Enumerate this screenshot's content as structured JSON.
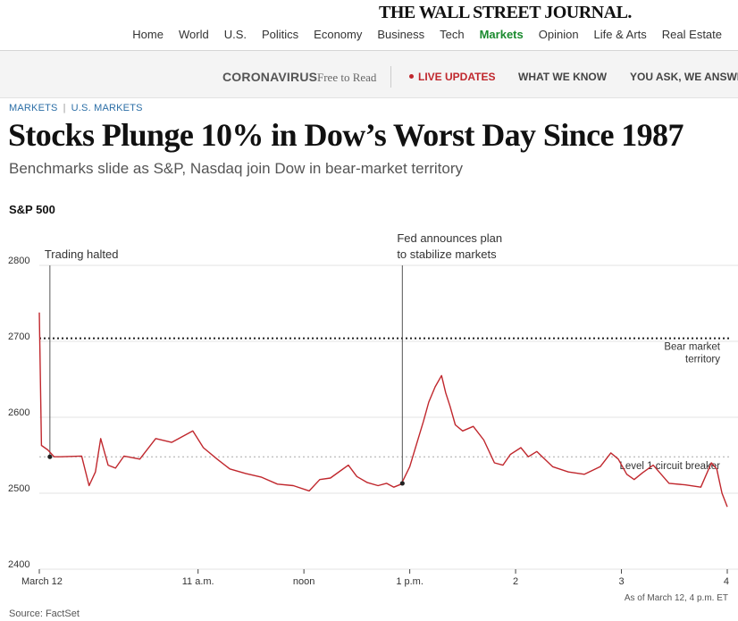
{
  "masthead": {
    "logo": "THE WALL STREET JOURNAL."
  },
  "nav": [
    "Home",
    "World",
    "U.S.",
    "Politics",
    "Economy",
    "Business",
    "Tech",
    "Markets",
    "Opinion",
    "Life & Arts",
    "Real Estate"
  ],
  "nav_active": "Markets",
  "subbar": {
    "title": "CORONAVIRUS",
    "free": "Free to Read",
    "live": "LIVE UPDATES",
    "know": "WHAT WE KNOW",
    "ask": "YOU ASK, WE ANSWER"
  },
  "breadcrumb": {
    "section": "MARKETS",
    "subsection": "U.S. MARKETS"
  },
  "article": {
    "headline": "Stocks Plunge 10% in Dow’s Worst Day Since 1987",
    "dek": "Benchmarks slide as S&P, Nasdaq join Dow in bear-market territory"
  },
  "chart_data": {
    "type": "line",
    "title": "S&P 500",
    "xlabel": "",
    "ylabel": "",
    "ylim": [
      2400,
      2800
    ],
    "yticks": [
      2400,
      2500,
      2600,
      2700,
      2800
    ],
    "xlim": [
      9.5,
      16.0
    ],
    "xticks": [
      {
        "x": 9.5,
        "label": "March 12"
      },
      {
        "x": 11.0,
        "label": "11 a.m."
      },
      {
        "x": 12.0,
        "label": "noon"
      },
      {
        "x": 13.0,
        "label": "1 p.m."
      },
      {
        "x": 14.0,
        "label": "2"
      },
      {
        "x": 15.0,
        "label": "3"
      },
      {
        "x": 16.0,
        "label": "4"
      }
    ],
    "series": [
      {
        "color": "#c0272d",
        "x": [
          9.5,
          9.52,
          9.58,
          9.64,
          9.7,
          9.9,
          9.97,
          10.03,
          10.08,
          10.15,
          10.22,
          10.3,
          10.45,
          10.6,
          10.75,
          10.95,
          11.05,
          11.18,
          11.3,
          11.45,
          11.6,
          11.75,
          11.9,
          12.05,
          12.15,
          12.25,
          12.35,
          12.42,
          12.5,
          12.6,
          12.7,
          12.78,
          12.85,
          12.92,
          13.0,
          13.08,
          13.13,
          13.18,
          13.24,
          13.3,
          13.34,
          13.38,
          13.43,
          13.5,
          13.6,
          13.7,
          13.8,
          13.88,
          13.95,
          14.05,
          14.12,
          14.2,
          14.35,
          14.5,
          14.65,
          14.8,
          14.9,
          14.97,
          15.05,
          15.12,
          15.2,
          15.3,
          15.45,
          15.6,
          15.75,
          15.85,
          15.9,
          15.95,
          16.0
        ],
        "y": [
          2738,
          2563,
          2557,
          2548,
          2548,
          2549,
          2510,
          2528,
          2572,
          2537,
          2533,
          2549,
          2545,
          2572,
          2567,
          2582,
          2560,
          2545,
          2532,
          2526,
          2521,
          2512,
          2510,
          2503,
          2518,
          2520,
          2530,
          2537,
          2522,
          2514,
          2510,
          2513,
          2508,
          2512,
          2535,
          2572,
          2595,
          2620,
          2640,
          2655,
          2632,
          2615,
          2590,
          2582,
          2588,
          2570,
          2540,
          2537,
          2551,
          2560,
          2548,
          2555,
          2535,
          2528,
          2525,
          2535,
          2553,
          2545,
          2525,
          2518,
          2527,
          2537,
          2513,
          2511,
          2508,
          2540,
          2532,
          2500,
          2482
        ]
      }
    ],
    "reference_lines": [
      {
        "y": 2704,
        "label": "Bear market territory",
        "style": "dotted-dark"
      },
      {
        "y": 2548,
        "label": "Level 1 circuit breaker",
        "style": "dotted-light"
      }
    ],
    "annotations": [
      {
        "x": 9.6,
        "y": 2548,
        "label": "Trading halted"
      },
      {
        "x": 12.93,
        "y": 2513,
        "label": "Fed announces plan to stabilize markets"
      }
    ],
    "as_of": "As of March 12, 4 p.m. ET",
    "source": "Source: FactSet"
  }
}
